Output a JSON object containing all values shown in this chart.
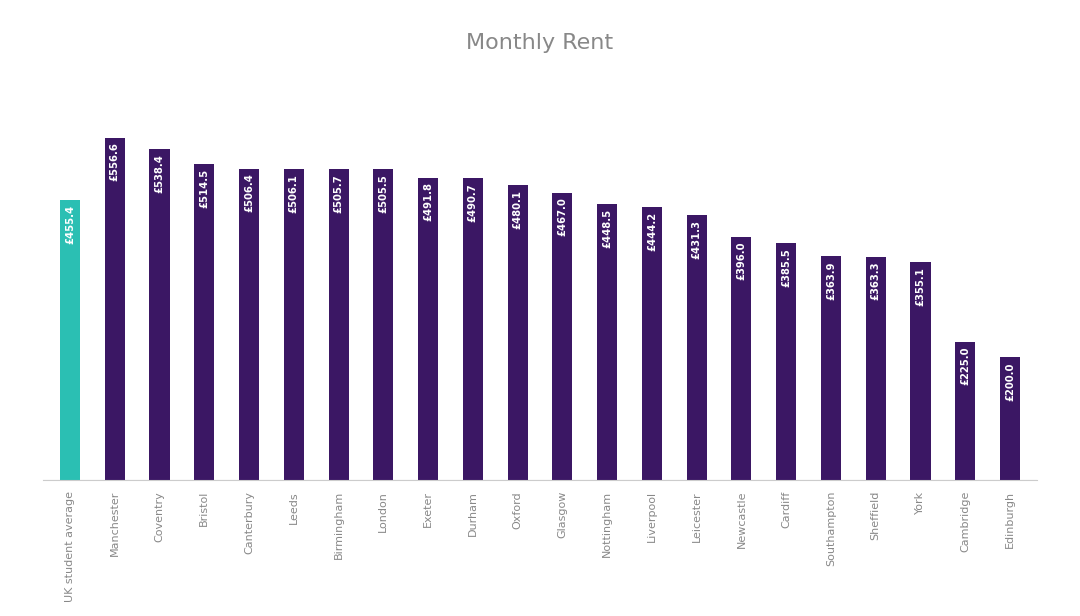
{
  "title": "Monthly Rent",
  "categories": [
    "UK student average",
    "Manchester",
    "Coventry",
    "Bristol",
    "Canterbury",
    "Leeds",
    "Birmingham",
    "London",
    "Exeter",
    "Durham",
    "Oxford",
    "Glasgow",
    "Nottingham",
    "Liverpool",
    "Leicester",
    "Newcastle",
    "Cardiff",
    "Southampton",
    "Sheffield",
    "York",
    "Cambridge",
    "Edinburgh"
  ],
  "values": [
    455.4,
    556.6,
    538.4,
    514.5,
    506.4,
    506.1,
    505.7,
    505.5,
    491.8,
    490.7,
    480.1,
    467.0,
    448.5,
    444.2,
    431.3,
    396.0,
    385.5,
    363.9,
    363.3,
    355.1,
    225.0,
    200.0
  ],
  "bar_colors": [
    "#2bbfb3",
    "#3b1764",
    "#3b1764",
    "#3b1764",
    "#3b1764",
    "#3b1764",
    "#3b1764",
    "#3b1764",
    "#3b1764",
    "#3b1764",
    "#3b1764",
    "#3b1764",
    "#3b1764",
    "#3b1764",
    "#3b1764",
    "#3b1764",
    "#3b1764",
    "#3b1764",
    "#3b1764",
    "#3b1764",
    "#3b1764",
    "#3b1764"
  ],
  "label_color": "#ffffff",
  "title_color": "#888888",
  "title_fontsize": 16,
  "label_fontsize": 7.2,
  "background_color": "#ffffff",
  "ylim": [
    0,
    660
  ],
  "bar_width": 0.45,
  "tick_color": "#888888",
  "tick_fontsize": 8.0
}
